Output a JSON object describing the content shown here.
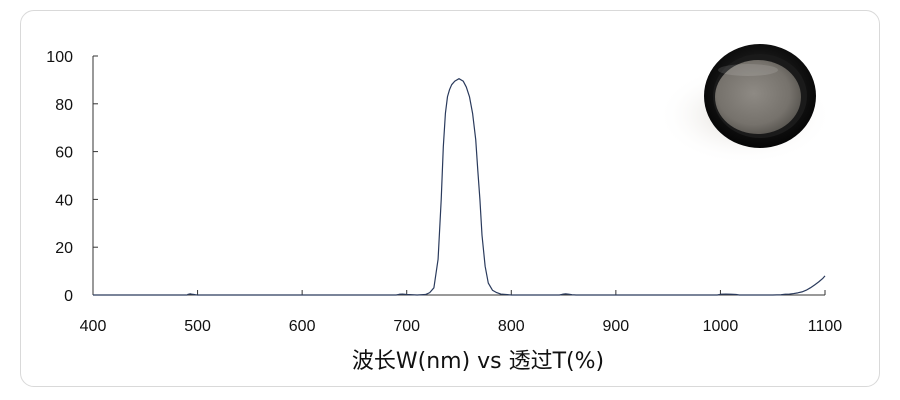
{
  "chart_data": {
    "type": "line",
    "title": "",
    "xlabel": "波长W(nm) vs 透过T(%)",
    "ylabel": "",
    "xlim": [
      400,
      1100
    ],
    "ylim": [
      0,
      100
    ],
    "x_ticks": [
      400,
      500,
      600,
      700,
      800,
      900,
      1000,
      1100
    ],
    "y_ticks": [
      0,
      20,
      40,
      60,
      80,
      100
    ],
    "grid": false,
    "legend": "none",
    "series": [
      {
        "color": "#2a3a5c",
        "x": [
          400,
          490,
          491,
          493,
          495,
          498,
          500,
          600,
          690,
          693,
          696,
          700,
          710,
          718,
          722,
          726,
          730,
          733,
          735,
          737,
          739,
          741,
          743,
          746,
          750,
          754,
          757,
          760,
          763,
          766,
          768,
          770,
          772,
          775,
          778,
          782,
          786,
          790,
          800,
          846,
          849,
          852,
          855,
          858,
          862,
          900,
          997,
          1000,
          1005,
          1010,
          1015,
          1018,
          1050,
          1058,
          1062,
          1066,
          1070,
          1074,
          1078,
          1082,
          1086,
          1090,
          1094,
          1098,
          1100
        ],
        "y": [
          0,
          0,
          0.3,
          0.5,
          0.3,
          0.1,
          0,
          0,
          0,
          0.3,
          0.4,
          0.2,
          0,
          0.2,
          1,
          3,
          15,
          40,
          62,
          76,
          83,
          86,
          88,
          89.5,
          90.5,
          89.5,
          87,
          83,
          76,
          65,
          52,
          40,
          25,
          12,
          5,
          2,
          1,
          0.4,
          0,
          0,
          0.3,
          0.5,
          0.3,
          0.1,
          0,
          0,
          0,
          0.3,
          0.4,
          0.3,
          0.2,
          0,
          0,
          0.1,
          0.3,
          0.4,
          0.6,
          0.9,
          1.3,
          2,
          3,
          4.2,
          5.5,
          7,
          8
        ]
      }
    ]
  },
  "colors": {
    "line": "#2a3a5c",
    "axis": "#333333",
    "card_border": "#d9d9d9"
  }
}
